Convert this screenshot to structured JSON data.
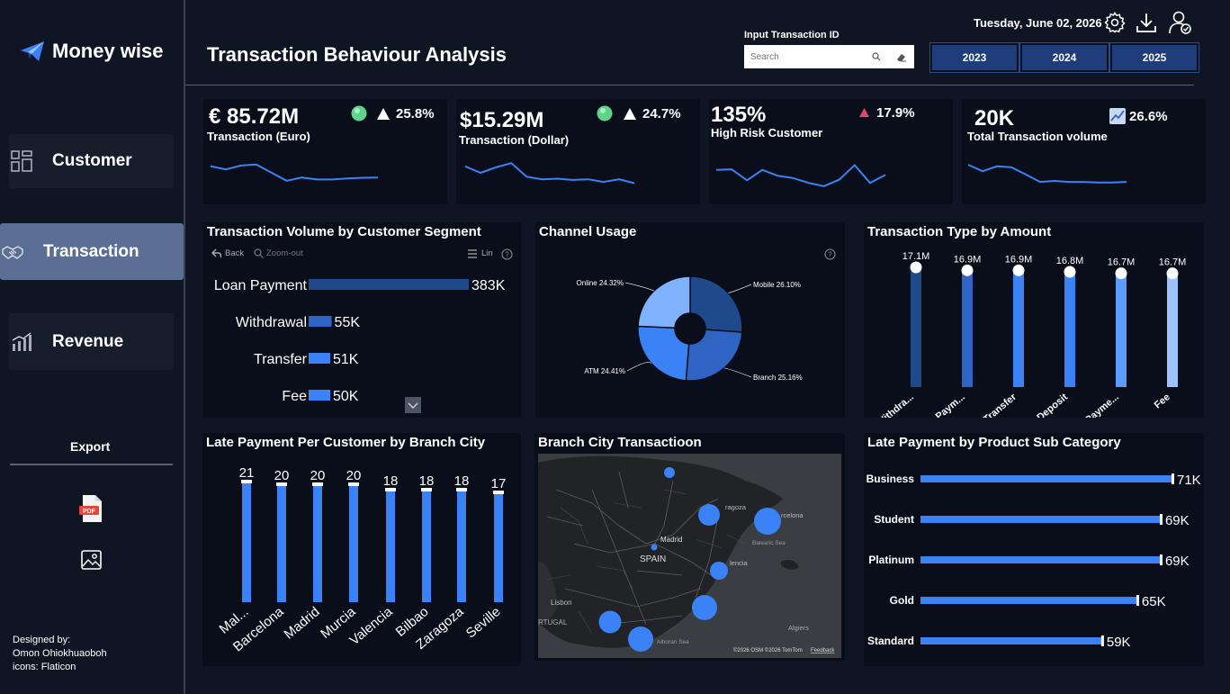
{
  "brand": {
    "name": "Money wise"
  },
  "nav": {
    "customer": "Customer",
    "transaction": "Transaction",
    "revenue": "Revenue"
  },
  "export": {
    "label": "Export"
  },
  "credits": {
    "line1": "Designed by:",
    "line2": "Omon Ohiokhuaoboh",
    "line3": "icons: Flaticon"
  },
  "header": {
    "title": "Transaction Behaviour Analysis",
    "date": "Tuesday, June 02, 2026",
    "search_label": "Input Transaction ID",
    "search_placeholder": "Search",
    "years": [
      "2023",
      "2024",
      "2025"
    ]
  },
  "kpis": [
    {
      "value": "€ 85.72M",
      "label": "Transaction (Euro)",
      "change": "25.8%",
      "trend": [
        0.35,
        0.45,
        0.33,
        0.3,
        0.55,
        0.8,
        0.7,
        0.76,
        0.76,
        0.73,
        0.71,
        0.7
      ]
    },
    {
      "value": "$15.29M",
      "label": "Transaction (Dollar)",
      "change": "24.7%",
      "trend": [
        0.3,
        0.5,
        0.33,
        0.2,
        0.62,
        0.7,
        0.68,
        0.72,
        0.7,
        0.78,
        0.7,
        0.82
      ]
    },
    {
      "value": "135%",
      "label": "High Risk Customer",
      "change": "17.9%",
      "trend": [
        0.3,
        0.28,
        0.62,
        0.3,
        0.48,
        0.55,
        0.7,
        0.8,
        0.6,
        0.15,
        0.7,
        0.45
      ]
    },
    {
      "value": "20K",
      "label": "Total Transaction volume",
      "change": "26.6%",
      "trend": [
        0.25,
        0.45,
        0.3,
        0.33,
        0.55,
        0.78,
        0.75,
        0.78,
        0.78,
        0.8,
        0.8,
        0.78
      ]
    }
  ],
  "segment_panel": {
    "title": "Transaction Volume by Customer Segment",
    "back": "Back",
    "zoom_out": "Zoom-out",
    "lin": "Lin"
  },
  "channel_panel": {
    "title": "Channel Usage"
  },
  "type_panel": {
    "title": "Transaction Type by Amount"
  },
  "late_city_panel": {
    "title": "Late Payment Per Customer by Branch City"
  },
  "map_panel": {
    "title": "Branch City Transactioon",
    "labels": {
      "madrid": "Madrid",
      "spain": "SPAIN",
      "zaragoza": "ragoza",
      "barcelona": "rcelona",
      "valencia": "lencia",
      "lisbon": "Lisbon",
      "portugal": "RTUGAL",
      "balearic": "Balearic Sea",
      "algiers": "Algiers",
      "alboran": "Alboran Sea"
    },
    "attribution": "©2026 OSM  ©2026 TomTom",
    "feedback": "Feedback"
  },
  "subcat_panel": {
    "title": "Late Payment by Product Sub Category"
  },
  "colors": {
    "accent": "#3b82f6",
    "dark_blue": "#1e4a8c",
    "mid_blue": "#2f63c4",
    "panel": "#0a0e1a",
    "bg": "#0f1522",
    "active_nav": "#5a6f93"
  },
  "chart_data": [
    {
      "type": "bar",
      "title": "Transaction Volume by Customer Segment",
      "categories": [
        "Loan Payment",
        "Withdrawal",
        "Transfer",
        "Fee"
      ],
      "values": [
        383,
        55,
        51,
        50
      ],
      "labels": [
        "383K",
        "55K",
        "51K",
        "50K"
      ]
    },
    {
      "type": "pie",
      "title": "Channel Usage",
      "categories": [
        "Mobile",
        "Branch",
        "ATM",
        "Online"
      ],
      "values": [
        26.1,
        25.16,
        24.41,
        24.32
      ],
      "labels": [
        "Mobile 26.10%",
        "Branch 25.16%",
        "ATM 24.41%",
        "Online 24.32%"
      ]
    },
    {
      "type": "bar",
      "title": "Transaction Type by Amount",
      "categories": [
        "Withdra...",
        "Loan Paym...",
        "Transfer",
        "Deposit",
        "Card Payme...",
        "Fee"
      ],
      "values": [
        17.1,
        16.9,
        16.9,
        16.8,
        16.7,
        16.7
      ],
      "labels": [
        "17.1M",
        "16.9M",
        "16.9M",
        "16.8M",
        "16.7M",
        "16.7M"
      ]
    },
    {
      "type": "bar",
      "title": "Late Payment Per Customer by Branch City",
      "categories": [
        "Mal...",
        "Barcelona",
        "Madrid",
        "Murcia",
        "Valencia",
        "Bilbao",
        "Zaragoza",
        "Seville"
      ],
      "values": [
        21,
        20,
        20,
        20,
        18,
        18,
        18,
        17
      ]
    },
    {
      "type": "bar",
      "title": "Late Payment by Product Sub Category",
      "categories": [
        "Business",
        "Student",
        "Platinum",
        "Gold",
        "Standard"
      ],
      "values": [
        71,
        69,
        69,
        65,
        59
      ],
      "labels": [
        "71K",
        "69K",
        "69K",
        "65K",
        "59K"
      ]
    }
  ]
}
